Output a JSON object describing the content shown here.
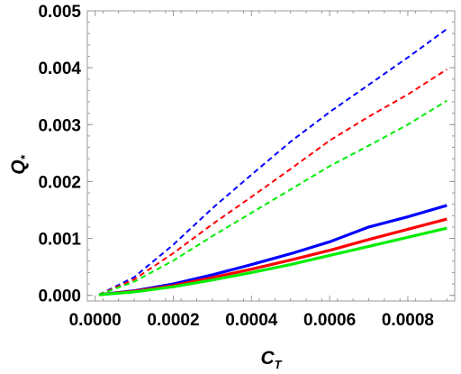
{
  "chart_data": {
    "type": "line",
    "xlabel": "C",
    "xlabel_sub": "T",
    "ylabel": "Q",
    "ylabel_sub": "*",
    "xlim": [
      -2e-05,
      0.00092
    ],
    "ylim": [
      -0.0001,
      0.005
    ],
    "x_ticks": [
      0.0,
      0.0002,
      0.0004,
      0.0006,
      0.0008
    ],
    "x_tick_labels": [
      "0.0000",
      "0.0002",
      "0.0004",
      "0.0006",
      "0.0008"
    ],
    "y_ticks": [
      0.0,
      0.001,
      0.002,
      0.003,
      0.004,
      0.005
    ],
    "y_tick_labels": [
      "0.000",
      "0.001",
      "0.002",
      "0.003",
      "0.004",
      "0.005"
    ],
    "grid": false,
    "legend": "none",
    "series": [
      {
        "color": "#0000ff",
        "style": "dashed",
        "x": [
          1e-05,
          0.0001,
          0.0002,
          0.0003,
          0.0004,
          0.0005,
          0.0006,
          0.0007,
          0.0008,
          0.0009
        ],
        "y": [
          1e-05,
          0.00032,
          0.00089,
          0.00153,
          0.00212,
          0.0027,
          0.00322,
          0.0037,
          0.00418,
          0.00468
        ]
      },
      {
        "color": "#ff0000",
        "style": "dashed",
        "x": [
          1e-05,
          0.0001,
          0.0002,
          0.0003,
          0.0004,
          0.0005,
          0.0006,
          0.0007,
          0.0008,
          0.0009
        ],
        "y": [
          1e-05,
          0.00028,
          0.00074,
          0.00125,
          0.00173,
          0.00222,
          0.00272,
          0.00314,
          0.00353,
          0.00397
        ]
      },
      {
        "color": "#00ee00",
        "style": "dashed",
        "x": [
          1e-05,
          0.0001,
          0.0002,
          0.0003,
          0.0004,
          0.0005,
          0.0006,
          0.0007,
          0.0008,
          0.0009
        ],
        "y": [
          1e-05,
          0.00024,
          0.00061,
          0.00104,
          0.00145,
          0.00186,
          0.00227,
          0.00263,
          0.003,
          0.00342
        ]
      },
      {
        "color": "#0000ff",
        "style": "solid",
        "x": [
          1e-05,
          0.0001,
          0.0002,
          0.0003,
          0.0004,
          0.0005,
          0.0006,
          0.0007,
          0.0008,
          0.0009
        ],
        "y": [
          1e-05,
          8e-05,
          0.0002,
          0.00036,
          0.00054,
          0.00073,
          0.00094,
          0.0012,
          0.00138,
          0.00158
        ]
      },
      {
        "color": "#ff0000",
        "style": "solid",
        "x": [
          1e-05,
          0.0001,
          0.0002,
          0.0003,
          0.0004,
          0.0005,
          0.0006,
          0.0007,
          0.0008,
          0.0009
        ],
        "y": [
          1e-05,
          7e-05,
          0.00017,
          0.00031,
          0.00046,
          0.00062,
          0.00079,
          0.00098,
          0.00116,
          0.00134
        ]
      },
      {
        "color": "#00ee00",
        "style": "solid",
        "x": [
          1e-05,
          0.0001,
          0.0002,
          0.0003,
          0.0004,
          0.0005,
          0.0006,
          0.0007,
          0.0008,
          0.0009
        ],
        "y": [
          1e-05,
          6e-05,
          0.00015,
          0.00027,
          0.0004,
          0.00054,
          0.0007,
          0.00086,
          0.00102,
          0.00118
        ]
      }
    ]
  }
}
